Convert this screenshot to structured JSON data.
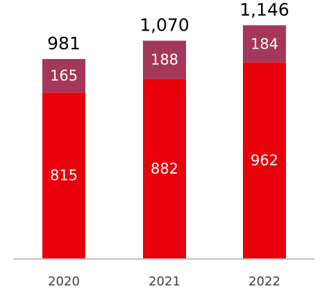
{
  "chart_data": {
    "type": "bar",
    "stacked": true,
    "categories": [
      "2020",
      "2021",
      "2022"
    ],
    "series": [
      {
        "values": [
          815,
          882,
          962
        ],
        "color": "#e8000b"
      },
      {
        "values": [
          165,
          188,
          184
        ],
        "color": "#a5385a"
      }
    ],
    "totals": [
      "981",
      "1,070",
      "1,146"
    ],
    "value_labels": [
      [
        "815",
        "882",
        "962"
      ],
      [
        "165",
        "188",
        "184"
      ]
    ],
    "ylim": [
      0,
      1270
    ],
    "grid": false,
    "legend": "none",
    "axis_color": "#bfbfbf"
  }
}
